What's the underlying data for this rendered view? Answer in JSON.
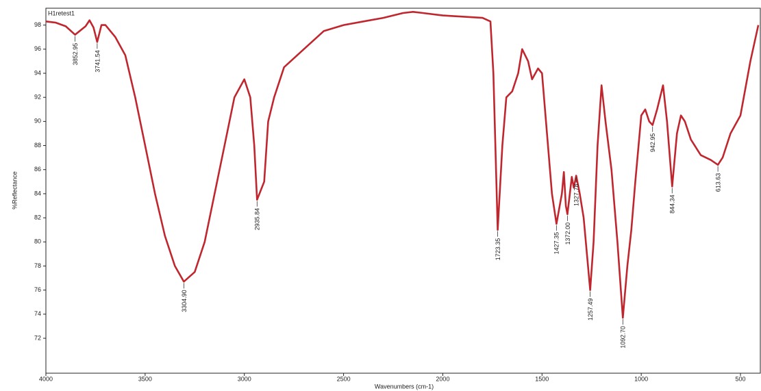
{
  "chart_data": {
    "type": "line",
    "xlabel": "Wavenumbers (cm-1)",
    "ylabel": "%Reflectance",
    "xlim": [
      4000,
      400
    ],
    "ylim": [
      69.1,
      99.4
    ],
    "xticks": [
      4000,
      3500,
      3000,
      2500,
      2000,
      1500,
      1000,
      500
    ],
    "yticks": [
      72,
      74,
      76,
      78,
      80,
      82,
      84,
      86,
      88,
      90,
      92,
      94,
      96,
      98
    ],
    "grid": false,
    "x": [
      4000,
      3950,
      3900,
      3852.95,
      3800,
      3780,
      3760,
      3741.54,
      3720,
      3700,
      3650,
      3600,
      3550,
      3500,
      3450,
      3400,
      3350,
      3304.9,
      3250,
      3200,
      3150,
      3100,
      3050,
      3000,
      2970,
      2950,
      2935.84,
      2900,
      2880,
      2850,
      2800,
      2700,
      2600,
      2500,
      2400,
      2300,
      2200,
      2150,
      2100,
      2000,
      1900,
      1800,
      1760,
      1745,
      1723.35,
      1700,
      1680,
      1650,
      1620,
      1600,
      1570,
      1550,
      1520,
      1500,
      1480,
      1450,
      1427.35,
      1400,
      1390,
      1380,
      1372.0,
      1350,
      1340,
      1327.78,
      1310,
      1290,
      1257.49,
      1240,
      1220,
      1200,
      1180,
      1150,
      1120,
      1092.7,
      1070,
      1050,
      1030,
      1000,
      980,
      960,
      942.95,
      920,
      890,
      870,
      844.34,
      820,
      800,
      780,
      750,
      700,
      650,
      613.63,
      590,
      550,
      500,
      450,
      410
    ],
    "series": [
      {
        "name": "H1retest1",
        "color": "#c0262e",
        "values": [
          98.3,
          98.2,
          97.9,
          97.2,
          97.9,
          98.4,
          97.8,
          96.6,
          98.0,
          98.0,
          97.0,
          95.5,
          92,
          88,
          84,
          80.5,
          78,
          76.7,
          77.5,
          80,
          84,
          88,
          92,
          93.5,
          92,
          88,
          83.5,
          85,
          90,
          92,
          94.5,
          96,
          97.5,
          98,
          98.3,
          98.6,
          99.0,
          99.1,
          99.0,
          98.8,
          98.7,
          98.6,
          98.3,
          94,
          81,
          88,
          92,
          92.5,
          94,
          96,
          95,
          93.5,
          94.4,
          94,
          90,
          84,
          81.5,
          84,
          85.8,
          83,
          82.3,
          85.4,
          84.5,
          85.5,
          84,
          82,
          76,
          80,
          88,
          93,
          90,
          86,
          80,
          73.7,
          78,
          81,
          85,
          90.5,
          91,
          90,
          89.7,
          91,
          93,
          90,
          84.6,
          89,
          90.5,
          90,
          88.5,
          87.2,
          86.8,
          86.4,
          87,
          89,
          90.5,
          95,
          98
        ]
      }
    ],
    "peaks": {
      "x": [
        3852.95,
        3741.54,
        3304.9,
        2935.84,
        1723.35,
        1427.35,
        1372.0,
        1327.78,
        1257.49,
        1092.7,
        942.95,
        844.34,
        613.63
      ],
      "y": [
        97.2,
        96.6,
        76.7,
        83.5,
        81,
        81.5,
        82.3,
        85.5,
        76,
        73.7,
        89.7,
        84.6,
        86.4
      ],
      "labels": [
        "3852.95",
        "3741.54",
        "3304.90",
        "2935.84",
        "1723.35",
        "1427.35",
        "1372.00",
        "1327.78",
        "1257.49",
        "1092.70",
        "942.95",
        "844.34",
        "613.63"
      ]
    }
  }
}
